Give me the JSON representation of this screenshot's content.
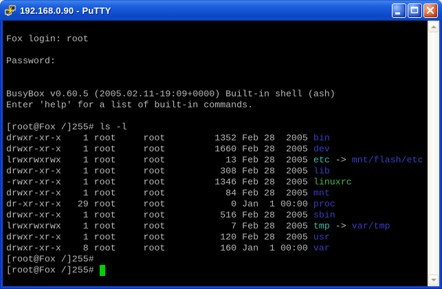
{
  "window": {
    "title": "192.168.0.90 - PuTTY",
    "app_icon": "putty-icon",
    "controls": [
      {
        "id": "minimize",
        "icon": "minimize-icon"
      },
      {
        "id": "maximize",
        "icon": "maximize-icon"
      },
      {
        "id": "close",
        "icon": "close-icon"
      }
    ]
  },
  "colors": {
    "titlebar_main": "#1659d8",
    "frame_border": "#1247d1",
    "terminal_bg": "#000000",
    "fg": "#b9b9b9",
    "dir": "#3b3bc8",
    "link": "#33bfa6",
    "exec": "#44bb44",
    "cursor": "#00cf00"
  },
  "scrollbar": {
    "up_icon": "chevron-up-icon",
    "down_icon": "chevron-down-icon"
  },
  "terminal": {
    "lines": [
      [],
      [
        {
          "t": "Fox login: root",
          "c": "fg"
        }
      ],
      [],
      [
        {
          "t": "Password:",
          "c": "fg"
        }
      ],
      [],
      [],
      [
        {
          "t": "BusyBox v0.60.5 (2005.02.11-19:09+0000) Built-in shell (ash)",
          "c": "fg"
        }
      ],
      [
        {
          "t": "Enter 'help' for a list of built-in commands.",
          "c": "fg"
        }
      ],
      [],
      [
        {
          "t": "[root@Fox /]255# ls -l",
          "c": "fg"
        }
      ],
      [
        {
          "t": "drwxr-xr-x    1 root     root         1352 Feb 28  2005 ",
          "c": "fg"
        },
        {
          "t": "bin",
          "c": "dir"
        }
      ],
      [
        {
          "t": "drwxr-xr-x    1 root     root         1660 Feb 28  2005 ",
          "c": "fg"
        },
        {
          "t": "dev",
          "c": "dir"
        }
      ],
      [
        {
          "t": "lrwxrwxrwx    1 root     root           13 Feb 28  2005 ",
          "c": "fg"
        },
        {
          "t": "etc",
          "c": "link"
        },
        {
          "t": " -> ",
          "c": "fg"
        },
        {
          "t": "mnt/flash/etc",
          "c": "dir"
        }
      ],
      [
        {
          "t": "drwxr-xr-x    1 root     root          308 Feb 28  2005 ",
          "c": "fg"
        },
        {
          "t": "lib",
          "c": "dir"
        }
      ],
      [
        {
          "t": "-rwxr-xr-x    1 root     root         1346 Feb 28  2005 ",
          "c": "fg"
        },
        {
          "t": "linuxrc",
          "c": "exec"
        }
      ],
      [
        {
          "t": "drwxr-xr-x    1 root     root           84 Feb 28  2005 ",
          "c": "fg"
        },
        {
          "t": "mnt",
          "c": "dir"
        }
      ],
      [
        {
          "t": "dr-xr-xr-x   29 root     root            0 Jan  1 00:00 ",
          "c": "fg"
        },
        {
          "t": "proc",
          "c": "dir"
        }
      ],
      [
        {
          "t": "drwxr-xr-x    1 root     root          516 Feb 28  2005 ",
          "c": "fg"
        },
        {
          "t": "sbin",
          "c": "dir"
        }
      ],
      [
        {
          "t": "lrwxrwxrwx    1 root     root            7 Feb 28  2005 ",
          "c": "fg"
        },
        {
          "t": "tmp",
          "c": "link"
        },
        {
          "t": " -> ",
          "c": "fg"
        },
        {
          "t": "var/tmp",
          "c": "dir"
        }
      ],
      [
        {
          "t": "drwxr-xr-x    1 root     root          120 Feb 28  2005 ",
          "c": "fg"
        },
        {
          "t": "usr",
          "c": "dir"
        }
      ],
      [
        {
          "t": "drwxr-xr-x    8 root     root          160 Jan  1 00:00 ",
          "c": "fg"
        },
        {
          "t": "var",
          "c": "dir"
        }
      ],
      [
        {
          "t": "[root@Fox /]255#",
          "c": "fg"
        }
      ],
      [
        {
          "t": "[root@Fox /]255# ",
          "c": "fg"
        },
        {
          "t": " ",
          "c": "cursor"
        }
      ]
    ]
  }
}
